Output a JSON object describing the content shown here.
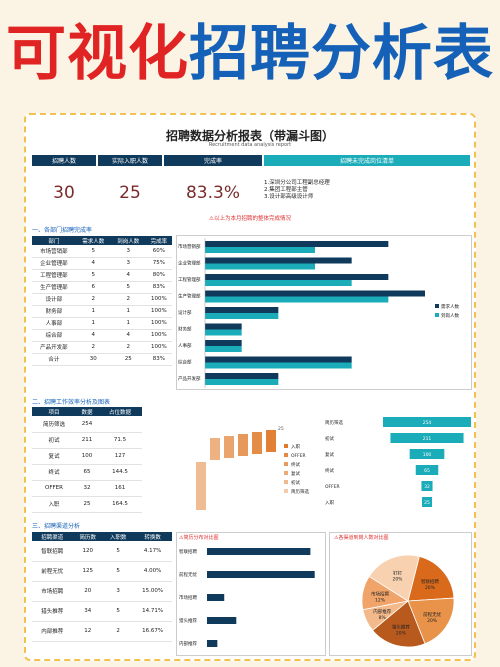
{
  "banner": {
    "part1": "可视化",
    "part2": "招聘分析表"
  },
  "report": {
    "title": "招聘数据分析报表（带漏斗图）",
    "subtitle": "Recruitment data analysis report"
  },
  "kpi": {
    "headers": [
      "招聘人数",
      "实际入职人数",
      "完成率",
      "招聘未完成岗位清单"
    ],
    "values": [
      "30",
      "25",
      "83.3%"
    ],
    "positions": [
      "1.深圳分公司工程副总经理",
      "2.集团工程部主管",
      "3.设计部高级设计师"
    ]
  },
  "warn1": "⚠以上为本月招聘的整体完成情况",
  "colors": {
    "navy": "#0F3A5C",
    "teal": "#1AACB8",
    "orange": "#E07A2A"
  },
  "sec1": {
    "title": "一、各部门招聘完成率",
    "headers": [
      "部门",
      "需求人数",
      "到岗人数",
      "完成率"
    ],
    "rows": [
      [
        "市场营销部",
        "5",
        "3",
        "60%"
      ],
      [
        "企业管理部",
        "4",
        "3",
        "75%"
      ],
      [
        "工程管理部",
        "5",
        "4",
        "80%"
      ],
      [
        "生产管理部",
        "6",
        "5",
        "83%"
      ],
      [
        "设计部",
        "2",
        "2",
        "100%"
      ],
      [
        "财务部",
        "1",
        "1",
        "100%"
      ],
      [
        "人事部",
        "1",
        "1",
        "100%"
      ],
      [
        "综合部",
        "4",
        "4",
        "100%"
      ],
      [
        "产品开发部",
        "2",
        "2",
        "100%"
      ],
      [
        "合计",
        "30",
        "25",
        "83%"
      ]
    ]
  },
  "dept_chart": {
    "type": "bar",
    "categories": [
      "市场营销部",
      "企业管理部",
      "工程管理部",
      "生产管理部",
      "设计部",
      "财务部",
      "人事部",
      "综合部",
      "产品开发部"
    ],
    "series": [
      {
        "name": "需求人数",
        "values": [
          5,
          4,
          5,
          6,
          2,
          1,
          1,
          4,
          2
        ]
      },
      {
        "name": "到岗人数",
        "values": [
          3,
          3,
          4,
          5,
          2,
          1,
          1,
          4,
          2
        ]
      }
    ]
  },
  "sec2": {
    "title": "二、招聘工作效率分析及图表",
    "headers": [
      "项目",
      "数据",
      "占位数据"
    ],
    "rows": [
      [
        "简历筛选",
        "254",
        ""
      ],
      [
        "初试",
        "211",
        "71.5"
      ],
      [
        "复试",
        "100",
        "127"
      ],
      [
        "终试",
        "65",
        "144.5"
      ],
      [
        "OFFER",
        "32",
        "161"
      ],
      [
        "入职",
        "25",
        "164.5"
      ]
    ]
  },
  "waterfall": {
    "type": "bar",
    "categories": [
      "入职",
      "OFFER",
      "终试",
      "复试",
      "初试",
      "简历筛选"
    ],
    "values": [
      25,
      32,
      65,
      100,
      211,
      254
    ],
    "top_label": "25"
  },
  "funnel": {
    "type": "bar",
    "categories": [
      "简历筛选",
      "初试",
      "复试",
      "终试",
      "OFFER",
      "入职"
    ],
    "values": [
      254,
      211,
      100,
      65,
      32,
      25
    ]
  },
  "sec3": {
    "title": "三、招聘渠道分析",
    "headers": [
      "招聘渠道",
      "简历数",
      "入职数",
      "转换数"
    ],
    "rows": [
      [
        "智联招聘",
        "120",
        "5",
        "4.17%"
      ],
      [
        "前程无忧",
        "125",
        "5",
        "4.00%"
      ],
      [
        "市场招聘",
        "20",
        "3",
        "15.00%"
      ],
      [
        "猎头推荐",
        "34",
        "5",
        "14.71%"
      ],
      [
        "内部推荐",
        "12",
        "2",
        "16.67%"
      ]
    ]
  },
  "channel_chart": {
    "type": "bar",
    "title": "⚠简历分布对比图",
    "categories": [
      "智联招聘",
      "前程无忧",
      "市场招聘",
      "猎头推荐",
      "内部推荐"
    ],
    "values": [
      120,
      125,
      20,
      34,
      12
    ]
  },
  "pie_chart": {
    "type": "pie",
    "title": "⚠各渠道到岗人数对比图",
    "slices": [
      {
        "label": "智联招聘",
        "pct": "20%",
        "value": 20
      },
      {
        "label": "前程无忧",
        "pct": "20%",
        "value": 20
      },
      {
        "label": "猎头推荐",
        "pct": "20%",
        "value": 20
      },
      {
        "label": "内部推荐",
        "pct": "8%",
        "value": 8
      },
      {
        "label": "市场招聘",
        "pct": "12%",
        "value": 12
      },
      {
        "label": "钉钉",
        "pct": "20%",
        "value": 20
      }
    ]
  }
}
